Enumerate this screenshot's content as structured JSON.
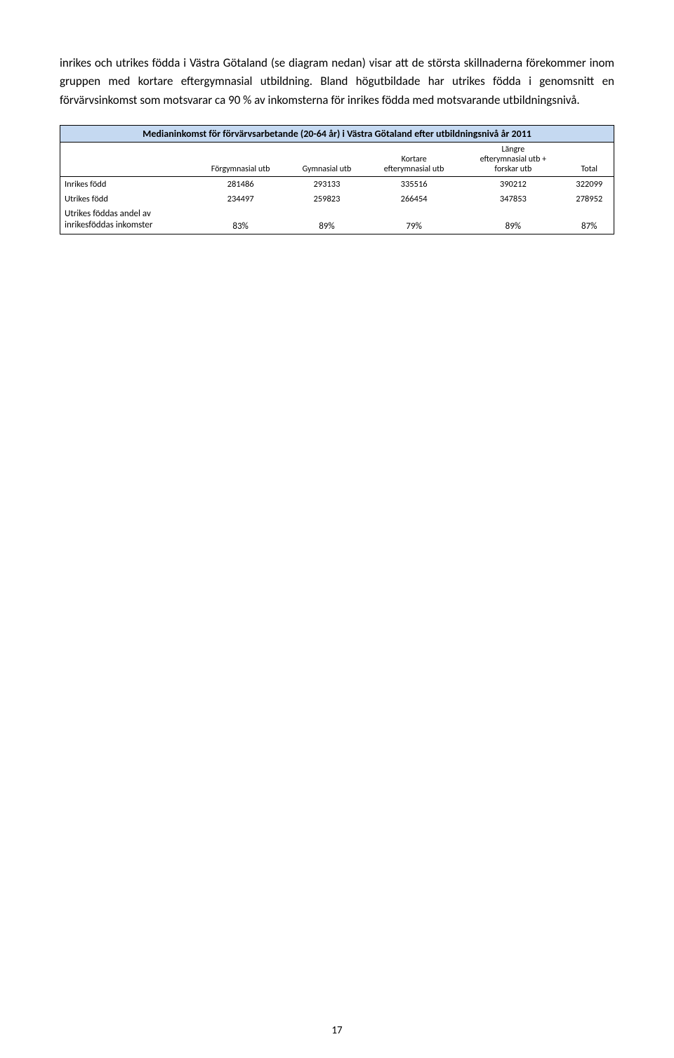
{
  "paragraph": "inrikes och utrikes födda i Västra Götaland (se diagram nedan) visar att de största skillnaderna förekommer inom gruppen med kortare eftergymnasial utbildning. Bland högutbildade har utrikes födda i genomsnitt en förvärvsinkomst som motsvarar ca 90 % av inkomsterna för inrikes födda med motsvarande utbildningsnivå.",
  "table": {
    "title": "Medianinkomst för förvärvsarbetande (20-64 år) i Västra Götaland efter utbildningsnivå år 2011",
    "title_bg": "#c5d9f1",
    "columns": [
      "Förgymnasial utb",
      "Gymnasial utb",
      "Kortare efterymnasial utb",
      "Längre efterymnasial utb + forskar utb",
      "Total"
    ],
    "rows": [
      {
        "label": "Inrikes född",
        "values": [
          "281486",
          "293133",
          "335516",
          "390212",
          "322099"
        ]
      },
      {
        "label": "Utrikes född",
        "values": [
          "234497",
          "259823",
          "266454",
          "347853",
          "278952"
        ]
      },
      {
        "label": "Utrikes föddas andel av inrikesföddas inkomster",
        "values": [
          "83%",
          "89%",
          "79%",
          "89%",
          "87%"
        ]
      }
    ]
  },
  "page_number": "17"
}
